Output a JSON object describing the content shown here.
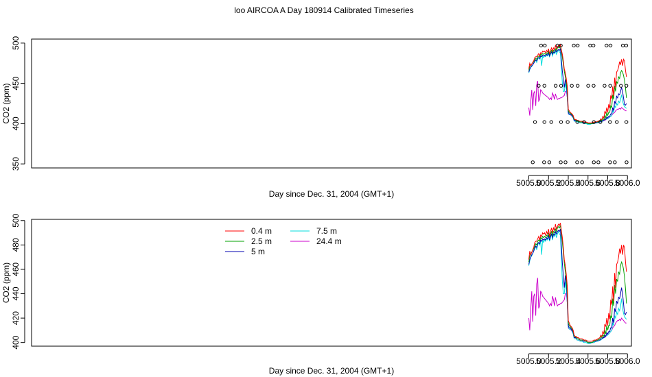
{
  "figure": {
    "title": "loo AIRCOA A  Day 180914  Calibrated Timeseries"
  },
  "chart_data": [
    {
      "type": "line",
      "id": "top",
      "xlabel": "Day since Dec. 31, 2004 (GMT+1)",
      "ylabel": "CO2 (ppm)",
      "xlim": [
        4999.96,
        5006.04
      ],
      "ylim": [
        345,
        505
      ],
      "xticks": [
        5005.0,
        5005.2,
        5005.4,
        5005.6,
        5005.8,
        5006.0
      ],
      "xtick_labels": [
        "5005.0",
        "5005.2",
        "5005.4",
        "5005.6",
        "5005.8",
        "5006.0"
      ],
      "yticks": [
        350,
        400,
        450,
        500
      ],
      "ytick_labels": [
        "350",
        "400",
        "450",
        "500"
      ],
      "grid": false,
      "series_ref": "shared",
      "markers": {
        "style": "open-circle",
        "points": [
          [
            5005.04,
            352
          ],
          [
            5005.063,
            402
          ],
          [
            5005.1,
            447
          ],
          [
            5005.124,
            497
          ],
          [
            5005.155,
            352
          ],
          [
            5005.158,
            402
          ],
          [
            5005.158,
            447
          ],
          [
            5005.162,
            497
          ],
          [
            5005.208,
            352
          ],
          [
            5005.228,
            402
          ],
          [
            5005.272,
            447
          ],
          [
            5005.292,
            497
          ],
          [
            5005.324,
            352
          ],
          [
            5005.327,
            402
          ],
          [
            5005.327,
            447
          ],
          [
            5005.324,
            497
          ],
          [
            5005.372,
            352
          ],
          [
            5005.394,
            402
          ],
          [
            5005.436,
            447
          ],
          [
            5005.456,
            497
          ],
          [
            5005.49,
            352
          ],
          [
            5005.492,
            402
          ],
          [
            5005.495,
            447
          ],
          [
            5005.495,
            497
          ],
          [
            5005.54,
            352
          ],
          [
            5005.56,
            402
          ],
          [
            5005.602,
            447
          ],
          [
            5005.622,
            497
          ],
          [
            5005.659,
            352
          ],
          [
            5005.659,
            402
          ],
          [
            5005.657,
            447
          ],
          [
            5005.655,
            497
          ],
          [
            5005.705,
            352
          ],
          [
            5005.725,
            402
          ],
          [
            5005.768,
            447
          ],
          [
            5005.788,
            497
          ],
          [
            5005.823,
            352
          ],
          [
            5005.823,
            402
          ],
          [
            5005.825,
            447
          ],
          [
            5005.828,
            497
          ],
          [
            5005.872,
            352
          ],
          [
            5005.892,
            402
          ],
          [
            5005.934,
            447
          ],
          [
            5005.954,
            497
          ],
          [
            5005.991,
            352
          ],
          [
            5005.989,
            402
          ],
          [
            5005.989,
            447
          ],
          [
            5005.987,
            497
          ]
        ]
      }
    },
    {
      "type": "line",
      "id": "bottom",
      "xlabel": "Day since Dec. 31, 2004 (GMT+1)",
      "ylabel": "CO2 (ppm)",
      "xlim": [
        4999.96,
        5006.04
      ],
      "ylim": [
        397,
        501
      ],
      "xticks": [
        5005.0,
        5005.2,
        5005.4,
        5005.6,
        5005.8,
        5006.0
      ],
      "xtick_labels": [
        "5005.0",
        "5005.2",
        "5005.4",
        "5005.6",
        "5005.8",
        "5006.0"
      ],
      "yticks": [
        400,
        420,
        440,
        460,
        480,
        500
      ],
      "ytick_labels": [
        "400",
        "420",
        "440",
        "460",
        "480",
        "500"
      ],
      "grid": false,
      "legend": {
        "position": "top-center",
        "entries": [
          {
            "label": "0.4 m",
            "color": "#ff0000"
          },
          {
            "label": "2.5 m",
            "color": "#00a000"
          },
          {
            "label": "5 m",
            "color": "#0000b0"
          },
          {
            "label": "7.5 m",
            "color": "#00dddd"
          },
          {
            "label": "24.4 m",
            "color": "#cc00cc"
          }
        ]
      },
      "series_ref": "shared"
    }
  ],
  "series": [
    {
      "name": "0.4 m",
      "color": "#ff0000",
      "x": [
        5005.0,
        5005.01,
        5005.02,
        5005.03,
        5005.04,
        5005.05,
        5005.06,
        5005.07,
        5005.08,
        5005.09,
        5005.1,
        5005.11,
        5005.12,
        5005.13,
        5005.14,
        5005.15,
        5005.16,
        5005.17,
        5005.18,
        5005.19,
        5005.2,
        5005.21,
        5005.22,
        5005.23,
        5005.24,
        5005.25,
        5005.26,
        5005.27,
        5005.28,
        5005.29,
        5005.3,
        5005.31,
        5005.32,
        5005.33,
        5005.34,
        5005.35,
        5005.36,
        5005.37,
        5005.38,
        5005.39,
        5005.4,
        5005.41,
        5005.42,
        5005.43,
        5005.44,
        5005.45,
        5005.46,
        5005.47,
        5005.48,
        5005.49,
        5005.5,
        5005.52,
        5005.54,
        5005.56,
        5005.58,
        5005.6,
        5005.62,
        5005.64,
        5005.66,
        5005.68,
        5005.7,
        5005.72,
        5005.73,
        5005.74,
        5005.75,
        5005.76,
        5005.77,
        5005.78,
        5005.79,
        5005.8,
        5005.81,
        5005.82,
        5005.83,
        5005.84,
        5005.85,
        5005.86,
        5005.87,
        5005.88,
        5005.89,
        5005.9,
        5005.91,
        5005.92,
        5005.93,
        5005.94,
        5005.95,
        5005.96,
        5005.97,
        5005.98,
        5005.99
      ],
      "y": [
        468,
        475,
        472,
        474,
        476,
        478,
        482,
        483,
        483,
        485,
        487,
        484,
        488,
        487,
        490,
        489,
        490,
        488,
        491,
        489,
        493,
        487,
        491,
        494,
        490,
        494,
        492,
        497,
        493,
        495,
        497,
        496,
        498,
        492,
        486,
        478,
        468,
        463,
        456,
        446,
        418,
        416,
        414,
        413,
        412,
        410,
        406,
        405,
        405,
        404,
        404,
        403,
        403,
        402,
        402,
        401,
        401,
        401,
        402,
        402,
        403,
        404,
        406,
        405,
        409,
        407,
        415,
        413,
        420,
        414,
        424,
        419,
        435,
        431,
        446,
        434,
        457,
        445,
        464,
        466,
        470,
        477,
        473,
        480,
        472,
        480,
        478,
        466,
        458
      ]
    },
    {
      "name": "2.5 m",
      "color": "#00a000",
      "x": [
        5005.0,
        5005.01,
        5005.02,
        5005.03,
        5005.04,
        5005.05,
        5005.06,
        5005.07,
        5005.08,
        5005.09,
        5005.1,
        5005.11,
        5005.12,
        5005.13,
        5005.14,
        5005.15,
        5005.16,
        5005.17,
        5005.18,
        5005.19,
        5005.2,
        5005.21,
        5005.22,
        5005.23,
        5005.24,
        5005.25,
        5005.26,
        5005.27,
        5005.28,
        5005.29,
        5005.3,
        5005.31,
        5005.32,
        5005.33,
        5005.34,
        5005.35,
        5005.36,
        5005.37,
        5005.38,
        5005.39,
        5005.4,
        5005.41,
        5005.42,
        5005.43,
        5005.44,
        5005.45,
        5005.46,
        5005.47,
        5005.48,
        5005.49,
        5005.5,
        5005.52,
        5005.54,
        5005.56,
        5005.58,
        5005.6,
        5005.62,
        5005.64,
        5005.66,
        5005.68,
        5005.7,
        5005.72,
        5005.73,
        5005.74,
        5005.75,
        5005.76,
        5005.77,
        5005.78,
        5005.79,
        5005.8,
        5005.81,
        5005.82,
        5005.83,
        5005.84,
        5005.85,
        5005.86,
        5005.87,
        5005.88,
        5005.89,
        5005.9,
        5005.91,
        5005.92,
        5005.93,
        5005.94,
        5005.95,
        5005.96,
        5005.97,
        5005.98,
        5005.99
      ],
      "y": [
        466,
        471,
        473,
        474,
        476,
        477,
        479,
        481,
        480,
        483,
        484,
        483,
        486,
        485,
        487,
        486,
        487,
        486,
        488,
        487,
        490,
        486,
        489,
        491,
        488,
        491,
        490,
        493,
        491,
        494,
        495,
        494,
        496,
        490,
        482,
        474,
        465,
        458,
        452,
        440,
        416,
        414,
        413,
        412,
        411,
        409,
        405,
        405,
        404,
        403,
        403,
        402,
        402,
        402,
        401,
        400,
        400,
        400,
        401,
        402,
        402,
        403,
        405,
        404,
        406,
        405,
        410,
        407,
        414,
        410,
        414,
        414,
        422,
        420,
        436,
        430,
        447,
        440,
        452,
        450,
        458,
        456,
        463,
        466,
        464,
        460,
        454,
        444,
        432
      ]
    },
    {
      "name": "5 m",
      "color": "#0000b0",
      "x": [
        5005.0,
        5005.01,
        5005.02,
        5005.03,
        5005.04,
        5005.05,
        5005.06,
        5005.07,
        5005.08,
        5005.09,
        5005.1,
        5005.11,
        5005.12,
        5005.13,
        5005.14,
        5005.15,
        5005.16,
        5005.17,
        5005.18,
        5005.19,
        5005.2,
        5005.21,
        5005.22,
        5005.23,
        5005.24,
        5005.25,
        5005.26,
        5005.27,
        5005.28,
        5005.29,
        5005.3,
        5005.31,
        5005.32,
        5005.33,
        5005.34,
        5005.35,
        5005.36,
        5005.37,
        5005.38,
        5005.39,
        5005.4,
        5005.41,
        5005.42,
        5005.43,
        5005.44,
        5005.45,
        5005.46,
        5005.47,
        5005.48,
        5005.49,
        5005.5,
        5005.52,
        5005.54,
        5005.56,
        5005.58,
        5005.6,
        5005.62,
        5005.64,
        5005.66,
        5005.68,
        5005.7,
        5005.72,
        5005.73,
        5005.74,
        5005.75,
        5005.76,
        5005.77,
        5005.78,
        5005.79,
        5005.8,
        5005.81,
        5005.82,
        5005.83,
        5005.84,
        5005.85,
        5005.86,
        5005.87,
        5005.88,
        5005.89,
        5005.9,
        5005.91,
        5005.92,
        5005.93,
        5005.94,
        5005.95,
        5005.96,
        5005.97,
        5005.98,
        5005.99
      ],
      "y": [
        464,
        468,
        470,
        472,
        473,
        475,
        477,
        479,
        478,
        481,
        482,
        481,
        484,
        483,
        485,
        484,
        485,
        484,
        486,
        485,
        488,
        484,
        487,
        489,
        486,
        489,
        488,
        491,
        489,
        491,
        492,
        491,
        493,
        480,
        465,
        455,
        445,
        455,
        448,
        436,
        414,
        412,
        412,
        411,
        410,
        408,
        404,
        404,
        404,
        403,
        403,
        402,
        402,
        401,
        401,
        400,
        400,
        400,
        401,
        401,
        402,
        402,
        403,
        403,
        404,
        404,
        406,
        405,
        408,
        407,
        409,
        409,
        412,
        412,
        420,
        416,
        428,
        425,
        434,
        432,
        437,
        436,
        440,
        445,
        440,
        432,
        424,
        423,
        425
      ]
    },
    {
      "name": "7.5 m",
      "color": "#00dddd",
      "x": [
        5005.0,
        5005.01,
        5005.02,
        5005.03,
        5005.04,
        5005.05,
        5005.06,
        5005.07,
        5005.08,
        5005.09,
        5005.1,
        5005.11,
        5005.12,
        5005.13,
        5005.14,
        5005.15,
        5005.16,
        5005.17,
        5005.18,
        5005.19,
        5005.2,
        5005.21,
        5005.22,
        5005.23,
        5005.24,
        5005.25,
        5005.26,
        5005.27,
        5005.28,
        5005.29,
        5005.3,
        5005.31,
        5005.32,
        5005.33,
        5005.34,
        5005.35,
        5005.36,
        5005.37,
        5005.38,
        5005.39,
        5005.4,
        5005.41,
        5005.42,
        5005.43,
        5005.44,
        5005.45,
        5005.46,
        5005.47,
        5005.48,
        5005.49,
        5005.5,
        5005.52,
        5005.54,
        5005.56,
        5005.58,
        5005.6,
        5005.62,
        5005.64,
        5005.66,
        5005.68,
        5005.7,
        5005.72,
        5005.73,
        5005.74,
        5005.75,
        5005.76,
        5005.77,
        5005.78,
        5005.79,
        5005.8,
        5005.81,
        5005.82,
        5005.83,
        5005.84,
        5005.85,
        5005.86,
        5005.87,
        5005.88,
        5005.89,
        5005.9,
        5005.91,
        5005.92,
        5005.93,
        5005.94,
        5005.95,
        5005.96,
        5005.97,
        5005.98,
        5005.99
      ],
      "y": [
        463,
        467,
        470,
        471,
        473,
        476,
        478,
        479,
        476,
        480,
        482,
        480,
        483,
        472,
        484,
        482,
        484,
        483,
        485,
        484,
        487,
        483,
        486,
        489,
        484,
        488,
        487,
        490,
        486,
        489,
        491,
        489,
        488,
        470,
        450,
        440,
        440,
        450,
        444,
        432,
        413,
        411,
        411,
        411,
        409,
        407,
        403,
        403,
        403,
        402,
        402,
        401,
        401,
        400,
        400,
        399,
        399,
        400,
        400,
        401,
        401,
        402,
        402,
        403,
        403,
        404,
        405,
        405,
        406,
        406,
        407,
        408,
        409,
        410,
        416,
        414,
        422,
        420,
        425,
        423,
        428,
        426,
        430,
        436,
        428,
        424,
        421,
        420,
        419
      ]
    },
    {
      "name": "24.4 m",
      "color": "#cc00cc",
      "x": [
        5005.0,
        5005.01,
        5005.02,
        5005.03,
        5005.04,
        5005.05,
        5005.06,
        5005.07,
        5005.08,
        5005.09,
        5005.1,
        5005.11,
        5005.12,
        5005.13,
        5005.14,
        5005.15,
        5005.16,
        5005.17,
        5005.18,
        5005.19,
        5005.2,
        5005.21,
        5005.22,
        5005.23,
        5005.24,
        5005.25,
        5005.26,
        5005.27,
        5005.28,
        5005.29,
        5005.3,
        5005.31,
        5005.32,
        5005.33,
        5005.34,
        5005.35,
        5005.36,
        5005.37,
        5005.38,
        5005.39,
        5005.4,
        5005.41,
        5005.42,
        5005.43,
        5005.44,
        5005.45,
        5005.46,
        5005.47,
        5005.48,
        5005.49,
        5005.5,
        5005.52,
        5005.54,
        5005.56,
        5005.58,
        5005.6,
        5005.62,
        5005.64,
        5005.66,
        5005.68,
        5005.7,
        5005.72,
        5005.73,
        5005.74,
        5005.75,
        5005.76,
        5005.77,
        5005.78,
        5005.79,
        5005.8,
        5005.81,
        5005.82,
        5005.83,
        5005.84,
        5005.85,
        5005.86,
        5005.87,
        5005.88,
        5005.89,
        5005.9,
        5005.91,
        5005.92,
        5005.93,
        5005.94,
        5005.95,
        5005.96,
        5005.97,
        5005.98,
        5005.99
      ],
      "y": [
        420,
        410,
        428,
        442,
        417,
        438,
        440,
        422,
        448,
        453,
        428,
        430,
        442,
        441,
        438,
        437,
        436,
        435,
        434,
        433,
        432,
        430,
        432,
        430,
        438,
        435,
        430,
        437,
        433,
        430,
        431,
        431,
        432,
        432,
        433,
        434,
        435,
        440,
        440,
        432,
        412,
        411,
        411,
        410,
        409,
        407,
        404,
        404,
        403,
        402,
        402,
        402,
        401,
        401,
        401,
        400,
        400,
        400,
        400,
        401,
        401,
        402,
        402,
        403,
        403,
        404,
        404,
        405,
        406,
        407,
        407,
        408,
        409,
        410,
        412,
        413,
        414,
        416,
        417,
        418,
        418,
        419,
        418,
        420,
        419,
        418,
        417,
        416,
        416
      ]
    }
  ]
}
